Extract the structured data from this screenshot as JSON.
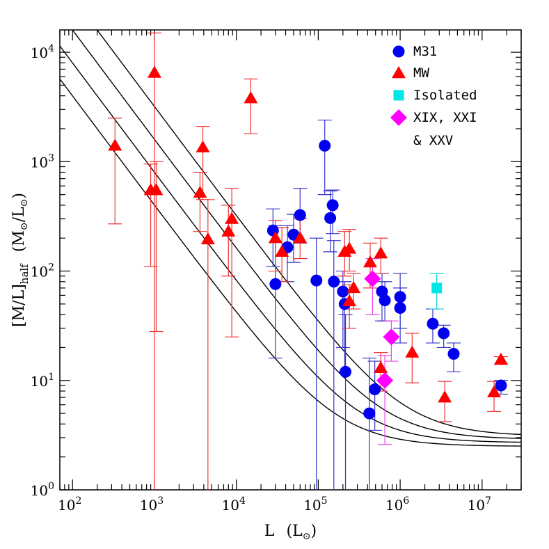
{
  "chart_data": {
    "type": "scatter",
    "x_scale": "log",
    "y_scale": "log",
    "xlim": [
      70,
      30000000
    ],
    "ylim": [
      1,
      16000
    ],
    "xlabel": {
      "base": "L",
      "unit_open": "(L",
      "unit_sub": "⊙",
      "unit_close": ")"
    },
    "ylabel": {
      "base": "[M/L]",
      "sub": "half",
      "unit_open": "(M",
      "unit_sub1": "⊙",
      "unit_mid": "/L",
      "unit_sub2": "⊙",
      "unit_close": ")"
    },
    "x_ticks": [
      {
        "value": 100,
        "base": "10",
        "exp": "2"
      },
      {
        "value": 1000,
        "base": "10",
        "exp": "3"
      },
      {
        "value": 10000,
        "base": "10",
        "exp": "4"
      },
      {
        "value": 100000,
        "base": "10",
        "exp": "5"
      },
      {
        "value": 1000000,
        "base": "10",
        "exp": "6"
      },
      {
        "value": 10000000,
        "base": "10",
        "exp": "7"
      }
    ],
    "y_ticks": [
      {
        "value": 1,
        "base": "10",
        "exp": "0"
      },
      {
        "value": 10,
        "base": "10",
        "exp": "1"
      },
      {
        "value": 100,
        "base": "10",
        "exp": "2"
      },
      {
        "value": 1000,
        "base": "10",
        "exp": "3"
      },
      {
        "value": 10000,
        "base": "10",
        "exp": "4"
      }
    ],
    "curves": [
      {
        "a": 30000,
        "b": 2.5
      },
      {
        "a": 60000,
        "b": 2.7
      },
      {
        "a": 120000,
        "b": 2.9
      },
      {
        "a": 240000,
        "b": 3.1
      }
    ],
    "legend": {
      "placement": "top-right"
    },
    "series": [
      {
        "name": "M31",
        "marker": "circle",
        "color": "#0000ee",
        "errcolor": "#3333cc",
        "points": [
          {
            "x": 28000,
            "y": 235,
            "lo": 110,
            "hi": 370
          },
          {
            "x": 30000,
            "y": 76,
            "lo": 16,
            "hi": 260
          },
          {
            "x": 42000,
            "y": 165,
            "lo": 80,
            "hi": 260
          },
          {
            "x": 50000,
            "y": 215,
            "lo": 120,
            "hi": 330
          },
          {
            "x": 60000,
            "y": 325,
            "lo": 180,
            "hi": 570
          },
          {
            "x": 95000,
            "y": 82,
            "lo": 1,
            "hi": 200
          },
          {
            "x": 120000,
            "y": 1400,
            "lo": 500,
            "hi": 2400
          },
          {
            "x": 140000,
            "y": 305,
            "lo": 150,
            "hi": 540
          },
          {
            "x": 150000,
            "y": 400,
            "lo": 220,
            "hi": 550
          },
          {
            "x": 155000,
            "y": 80,
            "lo": 1,
            "hi": 190
          },
          {
            "x": 200000,
            "y": 65,
            "lo": 20,
            "hi": 100
          },
          {
            "x": 210000,
            "y": 50,
            "lo": 12,
            "hi": 80
          },
          {
            "x": 215000,
            "y": 12,
            "lo": 1,
            "hi": 40
          },
          {
            "x": 420000,
            "y": 5,
            "lo": 1,
            "hi": 16
          },
          {
            "x": 490000,
            "y": 8.3,
            "lo": 3.5,
            "hi": 15
          },
          {
            "x": 600000,
            "y": 65,
            "lo": 35,
            "hi": 95
          },
          {
            "x": 650000,
            "y": 54,
            "lo": 35,
            "hi": 80
          },
          {
            "x": 1000000,
            "y": 58,
            "lo": 30,
            "hi": 95
          },
          {
            "x": 1000000,
            "y": 46,
            "lo": 22,
            "hi": 70
          },
          {
            "x": 2500000,
            "y": 33,
            "lo": 22,
            "hi": 45
          },
          {
            "x": 3400000,
            "y": 27,
            "lo": 20,
            "hi": 32
          },
          {
            "x": 4500000,
            "y": 17.5,
            "lo": 12,
            "hi": 22
          },
          {
            "x": 17000000,
            "y": 9,
            "lo": 7.5,
            "hi": 10
          }
        ]
      },
      {
        "name": "MW",
        "marker": "triangle",
        "color": "#ff0000",
        "errcolor": "#ee3333",
        "points": [
          {
            "x": 330,
            "y": 1400,
            "lo": 270,
            "hi": 2500
          },
          {
            "x": 900,
            "y": 550,
            "lo": 110,
            "hi": 950
          },
          {
            "x": 1000,
            "y": 6500,
            "lo": 1,
            "hi": 15000
          },
          {
            "x": 1050,
            "y": 550,
            "lo": 28,
            "hi": 1000
          },
          {
            "x": 3600,
            "y": 520,
            "lo": 230,
            "hi": 800
          },
          {
            "x": 3900,
            "y": 1350,
            "lo": 450,
            "hi": 2100
          },
          {
            "x": 4500,
            "y": 195,
            "lo": 1,
            "hi": 450
          },
          {
            "x": 8000,
            "y": 230,
            "lo": 90,
            "hi": 400
          },
          {
            "x": 8800,
            "y": 300,
            "lo": 25,
            "hi": 570
          },
          {
            "x": 15000,
            "y": 3800,
            "lo": 1800,
            "hi": 5700
          },
          {
            "x": 30000,
            "y": 200,
            "lo": 100,
            "hi": 290
          },
          {
            "x": 36000,
            "y": 150,
            "lo": 80,
            "hi": 250
          },
          {
            "x": 60000,
            "y": 200,
            "lo": 130,
            "hi": 300
          },
          {
            "x": 210000,
            "y": 150,
            "lo": 90,
            "hi": 230
          },
          {
            "x": 240000,
            "y": 160,
            "lo": 100,
            "hi": 240
          },
          {
            "x": 240000,
            "y": 53,
            "lo": 30,
            "hi": 75
          },
          {
            "x": 270000,
            "y": 70,
            "lo": 45,
            "hi": 95
          },
          {
            "x": 430000,
            "y": 120,
            "lo": 70,
            "hi": 180
          },
          {
            "x": 580000,
            "y": 145,
            "lo": 95,
            "hi": 200
          },
          {
            "x": 580000,
            "y": 13,
            "lo": 8,
            "hi": 18
          },
          {
            "x": 1400000,
            "y": 18,
            "lo": 9.5,
            "hi": 27
          },
          {
            "x": 3500000,
            "y": 7,
            "lo": 4.2,
            "hi": 9.8
          },
          {
            "x": 14000000,
            "y": 7.8,
            "lo": 5.2,
            "hi": 9.8
          },
          {
            "x": 17000000,
            "y": 15.5,
            "lo": 14,
            "hi": 16.5
          }
        ]
      },
      {
        "name": "Isolated",
        "marker": "square",
        "color": "#00e5e5",
        "errcolor": "#00d0d0",
        "points": [
          {
            "x": 2800000,
            "y": 70,
            "lo": 45,
            "hi": 95
          }
        ]
      },
      {
        "name": "XIX, XXI",
        "name_line2": "& XXV",
        "marker": "diamond",
        "color": "#ff00ff",
        "errcolor": "#ee44ee",
        "points": [
          {
            "x": 460000,
            "y": 85,
            "lo": 40,
            "hi": 130
          },
          {
            "x": 650000,
            "y": 10,
            "lo": 2.6,
            "hi": 17
          },
          {
            "x": 780000,
            "y": 25,
            "lo": 15,
            "hi": 35
          }
        ]
      }
    ]
  }
}
